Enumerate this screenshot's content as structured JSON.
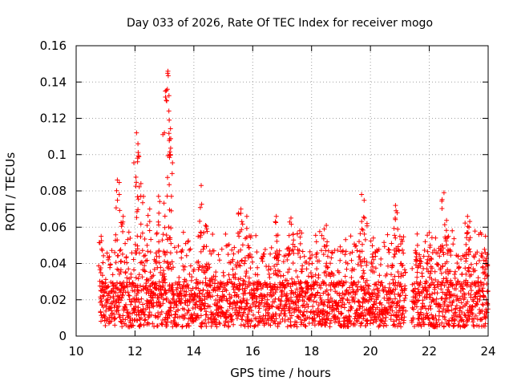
{
  "chart_data": {
    "type": "scatter",
    "title": "Day 033 of 2026, Rate Of TEC Index for receiver mogo",
    "xlabel": "GPS time / hours",
    "ylabel": "ROTI / TECUs",
    "xlim": [
      10,
      24
    ],
    "ylim": [
      0,
      0.16
    ],
    "xticks": [
      "10",
      "12",
      "14",
      "16",
      "18",
      "20",
      "22",
      "24"
    ],
    "yticks": [
      "0",
      "0.02",
      "0.04",
      "0.06",
      "0.08",
      "0.1",
      "0.12",
      "0.14",
      "0.16"
    ],
    "grid": true,
    "marker": "+",
    "series": [
      {
        "name": "ROTI",
        "color": "#ff0000",
        "data_start_hour": 10.8,
        "data_end_hour": 24.0,
        "data_gap_hours": [
          21.2,
          21.4
        ],
        "baseline_range": [
          0.005,
          0.03
        ],
        "peaks": [
          {
            "x": 10.85,
            "y": 0.055
          },
          {
            "x": 11.4,
            "y": 0.086
          },
          {
            "x": 11.6,
            "y": 0.066
          },
          {
            "x": 12.05,
            "y": 0.112
          },
          {
            "x": 12.1,
            "y": 0.106
          },
          {
            "x": 12.2,
            "y": 0.084
          },
          {
            "x": 12.5,
            "y": 0.07
          },
          {
            "x": 12.8,
            "y": 0.077
          },
          {
            "x": 13.0,
            "y": 0.112
          },
          {
            "x": 13.12,
            "y": 0.146
          },
          {
            "x": 13.1,
            "y": 0.136
          },
          {
            "x": 13.15,
            "y": 0.124
          },
          {
            "x": 13.2,
            "y": 0.1
          },
          {
            "x": 14.25,
            "y": 0.083
          },
          {
            "x": 14.4,
            "y": 0.061
          },
          {
            "x": 15.6,
            "y": 0.07
          },
          {
            "x": 15.8,
            "y": 0.066
          },
          {
            "x": 16.8,
            "y": 0.066
          },
          {
            "x": 17.3,
            "y": 0.065
          },
          {
            "x": 17.6,
            "y": 0.058
          },
          {
            "x": 18.5,
            "y": 0.061
          },
          {
            "x": 19.7,
            "y": 0.078
          },
          {
            "x": 19.8,
            "y": 0.065
          },
          {
            "x": 20.1,
            "y": 0.054
          },
          {
            "x": 20.85,
            "y": 0.072
          },
          {
            "x": 21.0,
            "y": 0.055
          },
          {
            "x": 21.6,
            "y": 0.05
          },
          {
            "x": 22.0,
            "y": 0.057
          },
          {
            "x": 22.5,
            "y": 0.079
          },
          {
            "x": 22.65,
            "y": 0.055
          },
          {
            "x": 23.3,
            "y": 0.066
          },
          {
            "x": 23.35,
            "y": 0.06
          },
          {
            "x": 23.9,
            "y": 0.046
          }
        ]
      }
    ]
  }
}
